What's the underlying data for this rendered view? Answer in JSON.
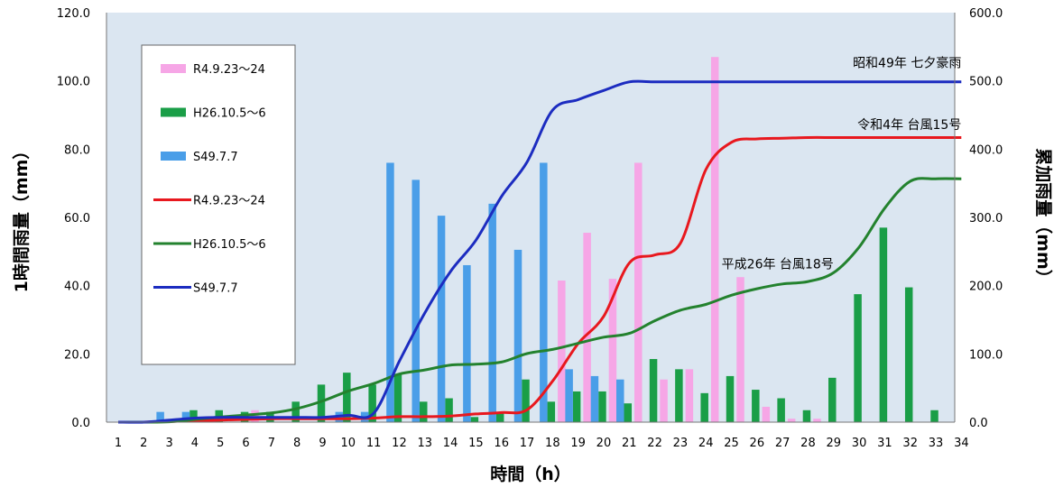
{
  "chart_data": {
    "type": "bar",
    "xlabel": "時間（h）",
    "ylabel_left": "1時間雨量（mm）",
    "ylabel_right": "累加雨量（mm）",
    "ylim_left": [
      0,
      120
    ],
    "ylim_right": [
      0,
      600
    ],
    "yticks_left": [
      "0.0",
      "20.0",
      "40.0",
      "60.0",
      "80.0",
      "100.0",
      "120.0"
    ],
    "yticks_right": [
      "0.0",
      "100.0",
      "200.0",
      "300.0",
      "400.0",
      "500.0",
      "600.0"
    ],
    "categories": [
      "1",
      "2",
      "3",
      "4",
      "5",
      "6",
      "7",
      "8",
      "9",
      "10",
      "11",
      "12",
      "13",
      "14",
      "15",
      "16",
      "17",
      "18",
      "19",
      "20",
      "21",
      "22",
      "23",
      "24",
      "25",
      "26",
      "27",
      "28",
      "29",
      "30",
      "31",
      "32",
      "33",
      "34"
    ],
    "grid": false,
    "legend_position": "top-left (inside plot)",
    "series": [
      {
        "name": "R4.9.23～24",
        "kind": "bar",
        "color": "#f6a6e6",
        "axis": "left",
        "values": [
          0,
          0,
          0,
          0,
          0,
          3.5,
          0,
          0,
          0,
          0,
          0,
          0,
          0,
          0,
          0,
          0,
          0,
          41.5,
          55.5,
          42,
          76,
          12.5,
          15.5,
          107,
          42.5,
          4.5,
          1,
          1,
          0,
          0,
          0,
          0,
          0,
          0
        ]
      },
      {
        "name": "H26.10.5～6",
        "kind": "bar",
        "color": "#1a9e47",
        "axis": "left",
        "values": [
          0,
          0,
          0.5,
          3.5,
          3.5,
          3,
          3,
          6,
          11,
          14.5,
          11,
          14,
          6,
          7,
          1.5,
          3,
          12.5,
          6,
          9,
          9,
          5.5,
          18.5,
          15.5,
          8.5,
          13.5,
          9.5,
          7,
          3.5,
          13,
          37.5,
          57,
          39.5,
          3.5,
          0
        ]
      },
      {
        "name": "S49.7.7",
        "kind": "bar",
        "color": "#4a9ee8",
        "axis": "left",
        "values": [
          0,
          0,
          3,
          3,
          1,
          0,
          0,
          0,
          0,
          3,
          3,
          76,
          71,
          60.5,
          46,
          64,
          50.5,
          76,
          15.5,
          13.5,
          12.5,
          0,
          0,
          0,
          0,
          0,
          0,
          0,
          0,
          0,
          0,
          0,
          0,
          0
        ]
      },
      {
        "name": "R4.9.23～24",
        "kind": "line",
        "color": "#e8181e",
        "axis": "right",
        "values": [
          0,
          0,
          1,
          2,
          3,
          4,
          5,
          5,
          5,
          5,
          6,
          8,
          8,
          9,
          12,
          14,
          18,
          60,
          115,
          155,
          233,
          245,
          262,
          370,
          410,
          415,
          416,
          417,
          417,
          417,
          417,
          417,
          417,
          417
        ]
      },
      {
        "name": "H26.10.5～6",
        "kind": "line",
        "color": "#23822e",
        "axis": "right",
        "values": [
          0,
          0,
          0.5,
          4,
          7.5,
          10.5,
          13.5,
          20,
          31,
          45.5,
          56.5,
          70.5,
          76.5,
          83.5,
          85,
          88,
          100.5,
          106.5,
          115.5,
          124.5,
          130,
          148.5,
          164,
          172.5,
          186,
          195.5,
          202.5,
          206,
          219,
          256.5,
          313.5,
          353,
          356.5,
          356.5
        ]
      },
      {
        "name": "S49.7.7",
        "kind": "line",
        "color": "#1c2cc0",
        "axis": "right",
        "values": [
          0,
          0,
          3,
          6,
          7,
          7,
          7,
          7,
          7,
          10,
          13,
          89,
          160,
          220.5,
          266.5,
          330.5,
          381,
          457,
          472.5,
          486,
          498.5,
          498.5,
          498.5,
          498.5,
          498.5,
          498.5,
          498.5,
          498.5,
          498.5,
          498.5,
          498.5,
          498.5,
          498.5,
          498.5
        ]
      }
    ],
    "annotations": [
      {
        "text": "昭和49年 七夕豪雨",
        "category": 34,
        "value_right": 507
      },
      {
        "text": "令和4年 台風15号",
        "category": 34,
        "value_right": 416
      },
      {
        "text": "平成26年 台風18号",
        "category": 29,
        "value_right": 212
      }
    ]
  }
}
